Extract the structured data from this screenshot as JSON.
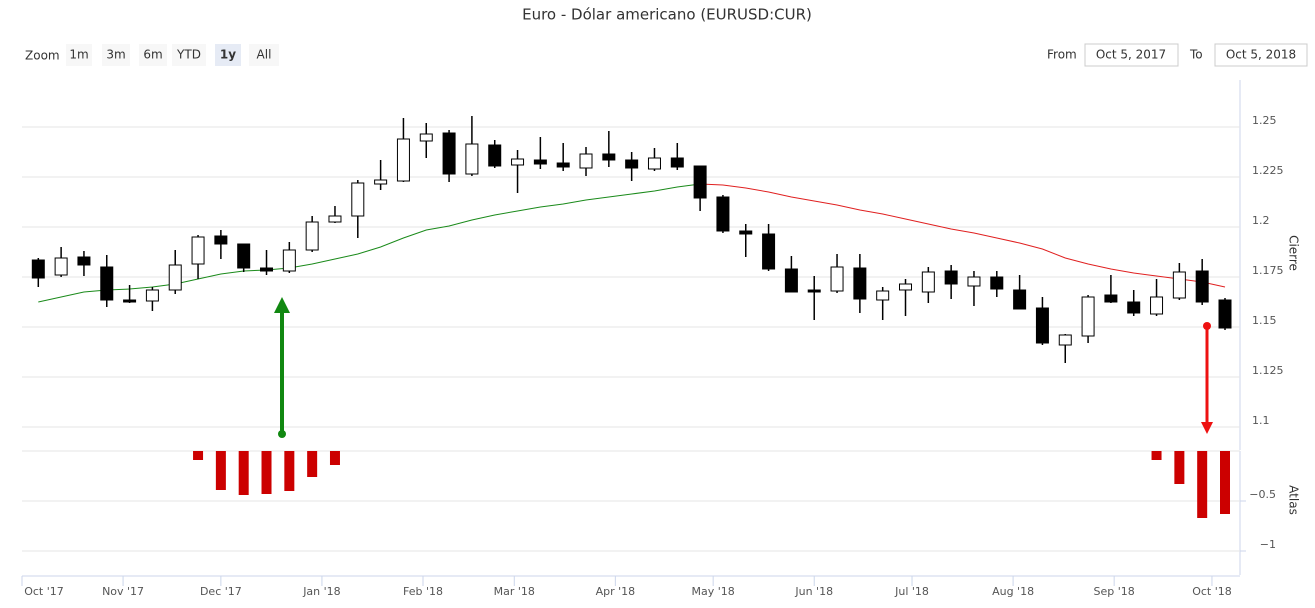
{
  "chart_data": {
    "type": "candlestick",
    "title": "Euro - Dólar americano (EURUSD:CUR)",
    "zoom": {
      "label": "Zoom",
      "buttons": [
        "1m",
        "3m",
        "6m",
        "YTD",
        "1y",
        "All"
      ],
      "selected": 4,
      "disabled": [
        0
      ]
    },
    "range": {
      "from_label": "From",
      "from": "Oct 5, 2017",
      "to_label": "To",
      "to": "Oct 5, 2018"
    },
    "xlim": [
      0,
      373.6
    ],
    "xticks": [
      {
        "value": 0,
        "label": "Oct '17"
      },
      {
        "value": 31,
        "label": "Nov '17"
      },
      {
        "value": 61,
        "label": "Dec '17"
      },
      {
        "value": 92,
        "label": "Jan '18"
      },
      {
        "value": 123,
        "label": "Feb '18"
      },
      {
        "value": 151,
        "label": "Mar '18"
      },
      {
        "value": 182,
        "label": "Apr '18"
      },
      {
        "value": 212,
        "label": "May '18"
      },
      {
        "value": 243,
        "label": "Jun '18"
      },
      {
        "value": 273,
        "label": "Jul '18"
      },
      {
        "value": 304,
        "label": "Aug '18"
      },
      {
        "value": 335,
        "label": "Sep '18"
      },
      {
        "value": 365,
        "label": "Oct '18"
      }
    ],
    "x": [
      5,
      12,
      19,
      26,
      33,
      40,
      47,
      54,
      61,
      68,
      75,
      82,
      89,
      96,
      103,
      110,
      117,
      124,
      131,
      138,
      145,
      152,
      159,
      166,
      173,
      180,
      187,
      194,
      201,
      208,
      215,
      222,
      229,
      236,
      243,
      250,
      257,
      264,
      271,
      278,
      285,
      292,
      299,
      306,
      313,
      320,
      327,
      334,
      341,
      348,
      355,
      362,
      369
    ],
    "open": [
      1.1835,
      1.176,
      1.185,
      1.18,
      1.1635,
      1.163,
      1.1685,
      1.1815,
      1.1955,
      1.1915,
      1.1795,
      1.178,
      1.1885,
      1.2025,
      1.2055,
      1.2215,
      1.223,
      1.243,
      1.247,
      1.2265,
      1.241,
      1.231,
      1.2335,
      1.232,
      1.2295,
      1.2365,
      1.2335,
      1.229,
      1.2345,
      1.2305,
      1.215,
      1.198,
      1.1965,
      1.179,
      1.1685,
      1.168,
      1.1795,
      1.1635,
      1.1685,
      1.1675,
      1.178,
      1.1705,
      1.175,
      1.1685,
      1.1595,
      1.141,
      1.1455,
      1.166,
      1.1625,
      1.1565,
      1.1645,
      1.178,
      1.1635
    ],
    "high": [
      1.1845,
      1.19,
      1.188,
      1.186,
      1.171,
      1.17,
      1.1885,
      1.196,
      1.1985,
      1.1915,
      1.1885,
      1.1925,
      1.2055,
      1.2105,
      1.2235,
      1.2335,
      1.2545,
      1.252,
      1.2485,
      1.2555,
      1.2435,
      1.2385,
      1.245,
      1.242,
      1.24,
      1.248,
      1.2375,
      1.2395,
      1.242,
      1.2305,
      1.216,
      1.2015,
      1.2015,
      1.1855,
      1.1755,
      1.1865,
      1.1865,
      1.17,
      1.174,
      1.18,
      1.181,
      1.178,
      1.178,
      1.176,
      1.165,
      1.1465,
      1.166,
      1.176,
      1.1685,
      1.174,
      1.182,
      1.184,
      1.1645
    ],
    "low": [
      1.17,
      1.175,
      1.1755,
      1.16,
      1.162,
      1.158,
      1.1665,
      1.174,
      1.184,
      1.1775,
      1.176,
      1.177,
      1.1875,
      1.202,
      1.1945,
      1.2185,
      1.2225,
      1.2345,
      1.2225,
      1.2255,
      1.2295,
      1.217,
      1.229,
      1.228,
      1.2255,
      1.23,
      1.223,
      1.228,
      1.2285,
      1.208,
      1.197,
      1.185,
      1.178,
      1.1675,
      1.1535,
      1.167,
      1.157,
      1.1535,
      1.1555,
      1.162,
      1.164,
      1.1605,
      1.165,
      1.159,
      1.141,
      1.132,
      1.142,
      1.162,
      1.1555,
      1.1555,
      1.1635,
      1.161,
      1.1485
    ],
    "close": [
      1.1745,
      1.1845,
      1.181,
      1.1635,
      1.1625,
      1.1685,
      1.181,
      1.195,
      1.1915,
      1.1795,
      1.178,
      1.1885,
      1.2025,
      1.2055,
      1.222,
      1.2235,
      1.244,
      1.2465,
      1.2265,
      1.2415,
      1.2305,
      1.234,
      1.2315,
      1.23,
      1.2365,
      1.2335,
      1.2295,
      1.2345,
      1.23,
      1.2145,
      1.198,
      1.1965,
      1.179,
      1.1675,
      1.1675,
      1.18,
      1.164,
      1.168,
      1.1715,
      1.1775,
      1.1715,
      1.175,
      1.169,
      1.159,
      1.142,
      1.146,
      1.165,
      1.1625,
      1.157,
      1.165,
      1.1775,
      1.1625,
      1.1495
    ],
    "up_color": "#ffffff",
    "down_color": "#000000",
    "ylim": [
      1.0885,
      1.2735
    ],
    "yticks": [
      1.1,
      1.125,
      1.15,
      1.175,
      1.2,
      1.225,
      1.25
    ],
    "y_label": "Cierre",
    "lines": [
      {
        "color": "#1a8a1a",
        "values": [
          1.1625,
          1.165,
          1.1675,
          1.1685,
          1.169,
          1.17,
          1.1715,
          1.174,
          1.1765,
          1.178,
          1.1785,
          1.1795,
          1.1815,
          1.184,
          1.1865,
          1.19,
          1.1945,
          1.1985,
          1.2005,
          1.2035,
          1.206,
          1.208,
          1.21,
          1.2115,
          1.2135,
          1.215,
          1.2165,
          1.218,
          1.22,
          1.2215,
          null,
          null,
          null,
          null,
          null,
          null,
          null,
          null,
          null,
          null,
          null,
          null,
          null,
          null,
          null,
          null,
          null,
          null,
          null,
          null,
          null,
          null,
          null
        ]
      },
      {
        "color": "#e02020",
        "values": [
          null,
          null,
          null,
          null,
          null,
          null,
          null,
          null,
          null,
          null,
          null,
          null,
          null,
          null,
          null,
          null,
          null,
          null,
          null,
          null,
          null,
          null,
          null,
          null,
          null,
          null,
          null,
          null,
          null,
          1.2215,
          1.221,
          1.2195,
          1.2175,
          1.215,
          1.213,
          1.211,
          1.2085,
          1.2065,
          1.204,
          1.2015,
          1.199,
          1.197,
          1.1945,
          1.192,
          1.189,
          1.1845,
          1.1815,
          1.179,
          1.177,
          1.1755,
          1.174,
          1.1725,
          1.17
        ]
      }
    ],
    "y2lim": [
      -1.24,
      0
    ],
    "y2ticks": [
      {
        "value": -0.5,
        "label": "−0.5"
      },
      {
        "value": -1,
        "label": "−1"
      }
    ],
    "y2_label": "Atlas",
    "bars": {
      "axis": "y2",
      "color": "#cc0000",
      "values": [
        null,
        null,
        null,
        null,
        null,
        null,
        null,
        -0.09,
        -0.39,
        -0.44,
        -0.43,
        -0.4,
        -0.26,
        -0.14,
        null,
        null,
        null,
        null,
        null,
        null,
        null,
        null,
        null,
        null,
        null,
        null,
        null,
        null,
        null,
        null,
        null,
        null,
        null,
        null,
        null,
        null,
        null,
        null,
        null,
        null,
        null,
        null,
        null,
        null,
        null,
        null,
        null,
        null,
        null,
        -0.09,
        -0.33,
        -0.67,
        -0.63
      ]
    }
  }
}
